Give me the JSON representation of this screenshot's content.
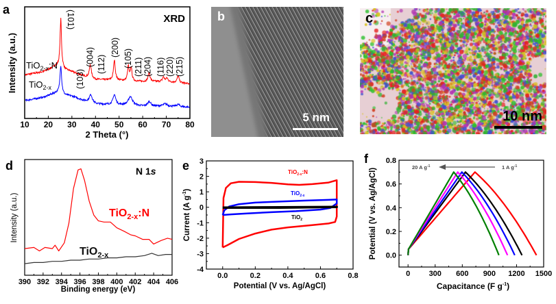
{
  "colors": {
    "red": "#ff0000",
    "blue": "#0000ff",
    "black": "#000000",
    "magenta": "#ff00ff",
    "green": "#008000",
    "gray": "#333333"
  },
  "panel_b": {
    "letter": "b",
    "scale_bar": "5 nm"
  },
  "panel_c": {
    "letter": "c",
    "scale_bar": "10 nm"
  },
  "chart_data": [
    {
      "panel": "a",
      "type": "line",
      "title": "XRD",
      "xlabel": "2 Theta (°)",
      "ylabel": "Intensity (a.u.)",
      "xlim": [
        10,
        80
      ],
      "ylim": [
        0,
        100
      ],
      "xticks": [
        10,
        20,
        30,
        40,
        50,
        60,
        70,
        80
      ],
      "peak_labels": [
        {
          "label": "(101)",
          "two_theta": 25.3
        },
        {
          "label": "(103)",
          "two_theta": 36.9
        },
        {
          "label": "(004)",
          "two_theta": 37.8
        },
        {
          "label": "(112)",
          "two_theta": 38.6
        },
        {
          "label": "(200)",
          "two_theta": 48.0
        },
        {
          "label": "(105)",
          "two_theta": 53.9
        },
        {
          "label": "(211)",
          "two_theta": 55.1
        },
        {
          "label": "(204)",
          "two_theta": 62.7
        },
        {
          "label": "(116)",
          "two_theta": 68.8
        },
        {
          "label": "(220)",
          "two_theta": 70.3
        },
        {
          "label": "(215)",
          "two_theta": 75.0
        }
      ],
      "series": [
        {
          "name": "TiO2-x:N",
          "color": "#ff0000",
          "background": [
            [
              10,
              39
            ],
            [
              18,
              42
            ],
            [
              23,
              47
            ],
            [
              25,
              48
            ],
            [
              27,
              44
            ],
            [
              30,
              42
            ],
            [
              35,
              38
            ],
            [
              40,
              35
            ],
            [
              50,
              34
            ],
            [
              60,
              33
            ],
            [
              70,
              33
            ],
            [
              80,
              31
            ]
          ],
          "peaks": [
            [
              25.3,
              42,
              0.35
            ],
            [
              37.8,
              12,
              0.5
            ],
            [
              48.0,
              18,
              0.45
            ],
            [
              53.9,
              13,
              0.4
            ],
            [
              55.1,
              12,
              0.4
            ],
            [
              62.7,
              8,
              0.5
            ],
            [
              68.8,
              4,
              0.5
            ],
            [
              70.3,
              3,
              0.5
            ],
            [
              75.0,
              6,
              0.5
            ]
          ]
        },
        {
          "name": "TiO2-x",
          "color": "#0000ff",
          "background": [
            [
              10,
              16
            ],
            [
              18,
              19
            ],
            [
              23,
              23
            ],
            [
              25,
              24
            ],
            [
              27,
              21
            ],
            [
              30,
              20
            ],
            [
              35,
              16
            ],
            [
              40,
              13
            ],
            [
              50,
              12
            ],
            [
              60,
              11
            ],
            [
              70,
              11
            ],
            [
              80,
              10
            ]
          ],
          "peaks": [
            [
              25.3,
              24,
              0.4
            ],
            [
              38.0,
              7,
              0.8
            ],
            [
              48.0,
              9,
              0.7
            ],
            [
              54.8,
              8,
              1.1
            ],
            [
              62.8,
              4,
              0.8
            ],
            [
              69.5,
              2,
              1.0
            ],
            [
              75.0,
              2,
              0.8
            ]
          ]
        }
      ]
    },
    {
      "panel": "d",
      "type": "line",
      "title": "N 1s",
      "xlabel": "Binding energy (eV)",
      "ylabel": "Intensity (a.u.)",
      "xlim": [
        390,
        406
      ],
      "ylim": [
        0,
        100
      ],
      "xticks": [
        390,
        392,
        394,
        396,
        398,
        400,
        402,
        404,
        406
      ],
      "series": [
        {
          "name": "TiO2-x:N",
          "color": "#ff0000",
          "points": [
            [
              390,
              23
            ],
            [
              391,
              24
            ],
            [
              391.6,
              21
            ],
            [
              392.2,
              24
            ],
            [
              393,
              23
            ],
            [
              393.3,
              26
            ],
            [
              393.7,
              21
            ],
            [
              394.3,
              28
            ],
            [
              394.8,
              45
            ],
            [
              395.3,
              75
            ],
            [
              395.8,
              91
            ],
            [
              396.1,
              92
            ],
            [
              396.5,
              82
            ],
            [
              397,
              64
            ],
            [
              397.5,
              52
            ],
            [
              398,
              47
            ],
            [
              398.6,
              46
            ],
            [
              399.3,
              46
            ],
            [
              400,
              41
            ],
            [
              400.8,
              38
            ],
            [
              401.5,
              35
            ],
            [
              402,
              34
            ],
            [
              402.8,
              31
            ],
            [
              403.5,
              31
            ],
            [
              404,
              27
            ],
            [
              404.8,
              30
            ],
            [
              405.5,
              32
            ],
            [
              406,
              31
            ]
          ]
        },
        {
          "name": "TiO2-x",
          "color": "#333333",
          "points": [
            [
              390,
              10
            ],
            [
              391,
              11
            ],
            [
              392,
              11
            ],
            [
              393,
              12
            ],
            [
              394,
              12
            ],
            [
              395,
              13
            ],
            [
              396,
              13
            ],
            [
              397,
              14
            ],
            [
              398,
              14
            ],
            [
              399,
              15
            ],
            [
              400,
              15
            ],
            [
              401,
              16
            ],
            [
              402,
              16
            ],
            [
              403,
              17
            ],
            [
              403.8,
              19
            ],
            [
              404.5,
              17
            ],
            [
              405.3,
              18
            ],
            [
              406,
              18
            ]
          ]
        }
      ]
    },
    {
      "panel": "e",
      "type": "line",
      "xlabel": "Potential (V vs. Ag/AgCl)",
      "ylabel": "Current (A g-1)",
      "xlim": [
        -0.1,
        0.8
      ],
      "ylim": [
        -4,
        3
      ],
      "xticks": [
        0.0,
        0.2,
        0.4,
        0.6,
        0.8
      ],
      "yticks": [
        -4,
        -3,
        -2,
        -1,
        0,
        1,
        2,
        3
      ],
      "series": [
        {
          "name": "TiO2-x:N",
          "color": "#ff0000",
          "points": [
            [
              0,
              -2.6
            ],
            [
              0.005,
              0.6
            ],
            [
              0.02,
              1.25
            ],
            [
              0.05,
              1.55
            ],
            [
              0.1,
              1.65
            ],
            [
              0.2,
              1.63
            ],
            [
              0.3,
              1.58
            ],
            [
              0.4,
              1.48
            ],
            [
              0.47,
              1.45
            ],
            [
              0.55,
              1.5
            ],
            [
              0.65,
              1.6
            ],
            [
              0.7,
              1.75
            ],
            [
              0.7,
              -0.6
            ],
            [
              0.69,
              -0.95
            ],
            [
              0.65,
              -1.05
            ],
            [
              0.55,
              -1.15
            ],
            [
              0.4,
              -1.3
            ],
            [
              0.3,
              -1.45
            ],
            [
              0.2,
              -1.7
            ],
            [
              0.1,
              -2.05
            ],
            [
              0.03,
              -2.45
            ],
            [
              0,
              -2.6
            ]
          ]
        },
        {
          "name": "TiO2-x",
          "color": "#0000ff",
          "points": [
            [
              0,
              -0.5
            ],
            [
              0.01,
              -0.2
            ],
            [
              0.04,
              0.05
            ],
            [
              0.1,
              0.2
            ],
            [
              0.2,
              0.3
            ],
            [
              0.35,
              0.37
            ],
            [
              0.5,
              0.43
            ],
            [
              0.65,
              0.48
            ],
            [
              0.7,
              0.5
            ],
            [
              0.7,
              0.25
            ],
            [
              0.66,
              -0.05
            ],
            [
              0.6,
              -0.15
            ],
            [
              0.45,
              -0.25
            ],
            [
              0.3,
              -0.32
            ],
            [
              0.15,
              -0.4
            ],
            [
              0.05,
              -0.46
            ],
            [
              0,
              -0.5
            ]
          ]
        },
        {
          "name": "TiO2",
          "color": "#000000",
          "points": [
            [
              0,
              -0.02
            ],
            [
              0.35,
              0.0
            ],
            [
              0.7,
              0.02
            ],
            [
              0.35,
              -0.02
            ],
            [
              0,
              -0.02
            ]
          ]
        }
      ]
    },
    {
      "panel": "f",
      "type": "line",
      "xlabel": "Capacitance (F g-1)",
      "ylabel": "Potential (V vs. Ag/AgCl)",
      "xlim": [
        -100,
        1500
      ],
      "ylim": [
        -0.1,
        0.8
      ],
      "xticks": [
        0,
        300,
        600,
        900,
        1200,
        1500
      ],
      "yticks": [
        0.0,
        0.2,
        0.4,
        0.6,
        0.8
      ],
      "annotation": {
        "from": "1 A g-1",
        "to": "20 A g-1"
      },
      "series": [
        {
          "color": "#ff0000",
          "peak": [
            740,
            0.7
          ],
          "end": 1420
        },
        {
          "color": "#000000",
          "peak": [
            635,
            0.7
          ],
          "end": 1260
        },
        {
          "color": "#0000ff",
          "peak": [
            595,
            0.7
          ],
          "end": 1180
        },
        {
          "color": "#ff00ff",
          "peak": [
            550,
            0.7
          ],
          "end": 1100
        },
        {
          "color": "#008000",
          "peak": [
            505,
            0.7
          ],
          "end": 1005
        }
      ]
    }
  ],
  "labels": {
    "a": "a",
    "d": "d",
    "e": "e",
    "f": "f",
    "a_title": "XRD",
    "a_xlabel": "2 Theta (°)",
    "a_ylabel": "Intensity (a.u.)",
    "tio2xn_main": "TiO",
    "tio2xn_sub": "2-x",
    "tio2xn_tail": ":N",
    "tio2x_main": "TiO",
    "tio2x_sub": "2-x",
    "tio2_main": "TiO",
    "tio2_sub": "2",
    "d_title": "N 1",
    "d_title_s": "s",
    "d_xlabel": "Binding energy (eV)",
    "d_ylabel": "Intensity (a.u.)",
    "e_xlabel": "Potential (V vs. Ag/AgCl)",
    "e_ylabel": "Current (A g",
    "e_ylabel_sup": "-1",
    "e_ylabel_tail": ")",
    "f_xlabel": "Capacitance (F g",
    "f_xlabel_sup": "-1",
    "f_xlabel_tail": ")",
    "f_ylabel": "Potential (V vs. Ag/AgCl)",
    "f_from": "1 A g",
    "f_to": "20 A g",
    "f_sup": "-1"
  }
}
